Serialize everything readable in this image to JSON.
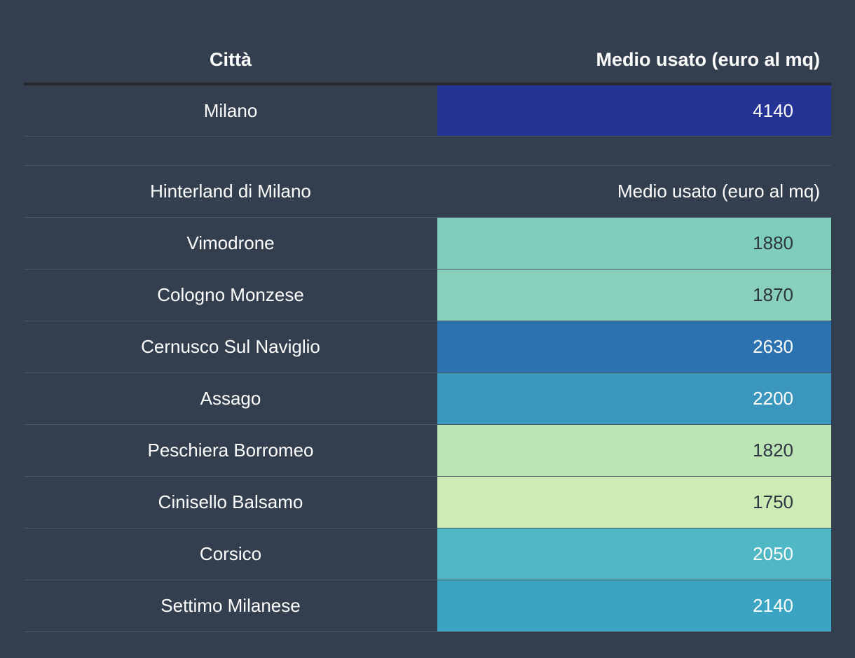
{
  "header": {
    "city_label": "Città",
    "value_label": "Medio usato (euro al mq)"
  },
  "milano": {
    "city": "Milano",
    "value": "4140",
    "color": "#253494"
  },
  "hinterland": {
    "city_label": "Hinterland di Milano",
    "value_label": "Medio usato (euro al mq)",
    "rows": [
      {
        "city": "Vimodrone",
        "value": "1880",
        "color": "#7fcdbb",
        "text": "dark"
      },
      {
        "city": "Cologno Monzese",
        "value": "1870",
        "color": "#88d0bb",
        "text": "dark"
      },
      {
        "city": "Cernusco Sul Naviglio",
        "value": "2630",
        "color": "#2c71b0",
        "text": "light"
      },
      {
        "city": "Assago",
        "value": "2200",
        "color": "#3a96bd",
        "text": "light"
      },
      {
        "city": "Peschiera Borromeo",
        "value": "1820",
        "color": "#bbe5b5",
        "text": "dark"
      },
      {
        "city": "Cinisello Balsamo",
        "value": "1750",
        "color": "#cdebb5",
        "text": "dark"
      },
      {
        "city": "Corsico",
        "value": "2050",
        "color": "#4fb8c4",
        "text": "light"
      },
      {
        "city": "Settimo Milanese",
        "value": "2140",
        "color": "#3ca4c3",
        "text": "light"
      }
    ]
  }
}
